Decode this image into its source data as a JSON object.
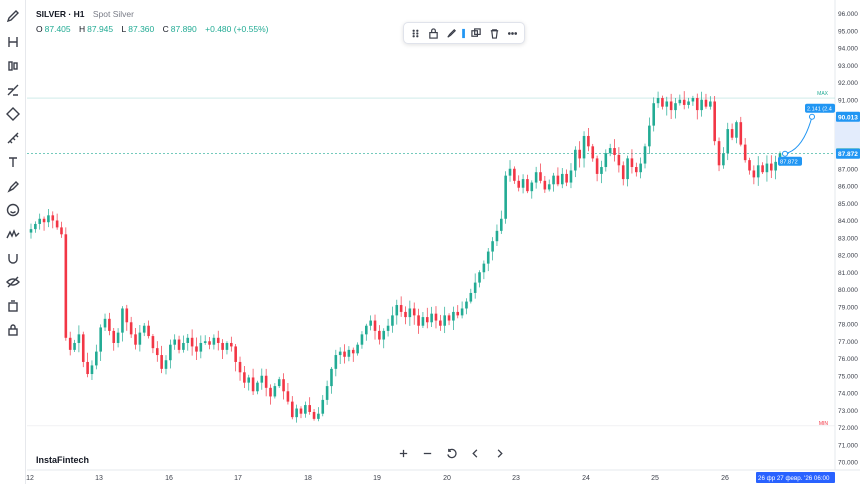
{
  "legend": {
    "symbol": "SILVER · H1",
    "description": "Spot Silver",
    "open_label": "O",
    "open": "87.405",
    "high_label": "H",
    "high": "87.945",
    "low_label": "L",
    "low": "87.360",
    "close_label": "C",
    "close": "87.890",
    "change": "+0.480 (+0.55%)"
  },
  "brand": "InstaFintech",
  "floating_toolbar": {
    "icons": [
      "drag-handle-icon",
      "lock-icon",
      "brush-icon",
      "clone-icon",
      "trash-icon",
      "more-icon"
    ]
  },
  "left_toolbar": {
    "icons": [
      "pencil-icon",
      "crosshair-icon",
      "trend-line-icon",
      "fib-icon",
      "pattern-icon",
      "measure-icon",
      "text-icon",
      "brush-icon",
      "emoji-icon",
      "waves-icon",
      "magnet-icon",
      "hide-icon",
      "ai-icon",
      "lock-icon"
    ]
  },
  "zoom_controls": {
    "icons": [
      "zoom-in-icon",
      "zoom-out-icon",
      "reset-icon",
      "scroll-left-icon",
      "scroll-right-icon"
    ]
  },
  "colors": {
    "up": "#22ab94",
    "down": "#f23645",
    "accent": "#2962ff",
    "price_tag": "#22ab94",
    "drawing": "#2196f3"
  },
  "chart_data": {
    "type": "candlestick",
    "symbol": "SILVER",
    "timeframe": "H1",
    "y_axis": {
      "min": 70.0,
      "max": 96.0,
      "ticks": [
        "96.000",
        "95.000",
        "94.000",
        "93.000",
        "92.000",
        "91.000",
        "90.000",
        "89.000",
        "88.000",
        "87.000",
        "86.000",
        "85.000",
        "84.000",
        "83.000",
        "82.000",
        "81.000",
        "80.000",
        "79.000",
        "78.000",
        "77.000",
        "76.000",
        "75.000",
        "74.000",
        "73.000",
        "72.000",
        "71.000",
        "70.000"
      ]
    },
    "x_axis": {
      "ticks": [
        "12",
        "13",
        "16",
        "17",
        "18",
        "19",
        "20",
        "23",
        "24",
        "25",
        "26"
      ],
      "crosshair_label": "26 фр 27 февр. '26 06:00"
    },
    "price_labels": {
      "last_price": "87.890",
      "current": "87.872",
      "target": "90.013",
      "drawing_current": "87.872",
      "drawing_info": "2.141 (2.4",
      "max_label": "MAX",
      "min_label": "MIN",
      "max_price": 91.1,
      "min_price": 72.1
    },
    "path": [
      {
        "day": "12",
        "closes": [
          83.5,
          83.8,
          84.1,
          83.9,
          84.3,
          84.0,
          83.6,
          83.2
        ]
      },
      {
        "day": "13",
        "closes": [
          77.2,
          76.5,
          76.9,
          77.4,
          75.8,
          75.1,
          75.6,
          76.4,
          77.8,
          78.3,
          77.6,
          76.9,
          77.5,
          78.9,
          78.1,
          77.4,
          76.8,
          77.5,
          77.9,
          77.3
        ]
      },
      {
        "day": "16",
        "closes": [
          76.6,
          76.2,
          75.4,
          75.9,
          76.8,
          77.1,
          76.5,
          76.9,
          77.2,
          76.7,
          76.4,
          76.9,
          77.0,
          76.8,
          77.2,
          76.9
        ]
      },
      {
        "day": "17",
        "closes": [
          76.5,
          76.9,
          76.7,
          75.8,
          75.2,
          74.6,
          74.9,
          74.1,
          74.6,
          75.0,
          74.3,
          73.8,
          74.4,
          74.8,
          74.1,
          73.5
        ]
      },
      {
        "day": "18",
        "closes": [
          72.6,
          73.1,
          72.8,
          73.3,
          72.9,
          72.5,
          72.8,
          73.6,
          74.4,
          75.4,
          76.2,
          76.4,
          76.1,
          76.5,
          76.3,
          76.8
        ]
      },
      {
        "day": "19",
        "closes": [
          77.4,
          77.9,
          78.2,
          77.6,
          77.1,
          77.6,
          77.9,
          78.5,
          79.1,
          78.7,
          78.4,
          78.9,
          78.5,
          77.9,
          78.4,
          78.1,
          78.6
        ]
      },
      {
        "day": "20",
        "closes": [
          78.2,
          77.9,
          78.5,
          78.2,
          78.7,
          78.5,
          78.9,
          79.3,
          79.8,
          80.4,
          81.0,
          81.5,
          82.2,
          82.8,
          83.4,
          84.1
        ]
      },
      {
        "day": "23",
        "closes": [
          86.6,
          87.0,
          86.3,
          85.9,
          86.4,
          85.7,
          86.2,
          86.8,
          86.3,
          85.8,
          86.1,
          86.6,
          86.1,
          86.7,
          86.2,
          86.9
        ]
      },
      {
        "day": "24",
        "closes": [
          88.1,
          87.6,
          88.9,
          88.3,
          87.6,
          86.7,
          87.1,
          87.9,
          88.2,
          87.8,
          87.2,
          86.4,
          87.6,
          87.1,
          86.8,
          87.3
        ]
      },
      {
        "day": "25",
        "closes": [
          88.3,
          89.5,
          90.8,
          91.1,
          90.6,
          90.9,
          90.4,
          90.8,
          91.0,
          90.7,
          90.9,
          91.1,
          90.4,
          91.0,
          90.6,
          90.9
        ]
      },
      {
        "day": "26",
        "closes": [
          88.6,
          87.2,
          87.9,
          89.3,
          88.8,
          89.7,
          88.4,
          87.5,
          86.9,
          86.5,
          87.2,
          86.8,
          87.3,
          86.9,
          87.4,
          87.9
        ]
      }
    ]
  }
}
